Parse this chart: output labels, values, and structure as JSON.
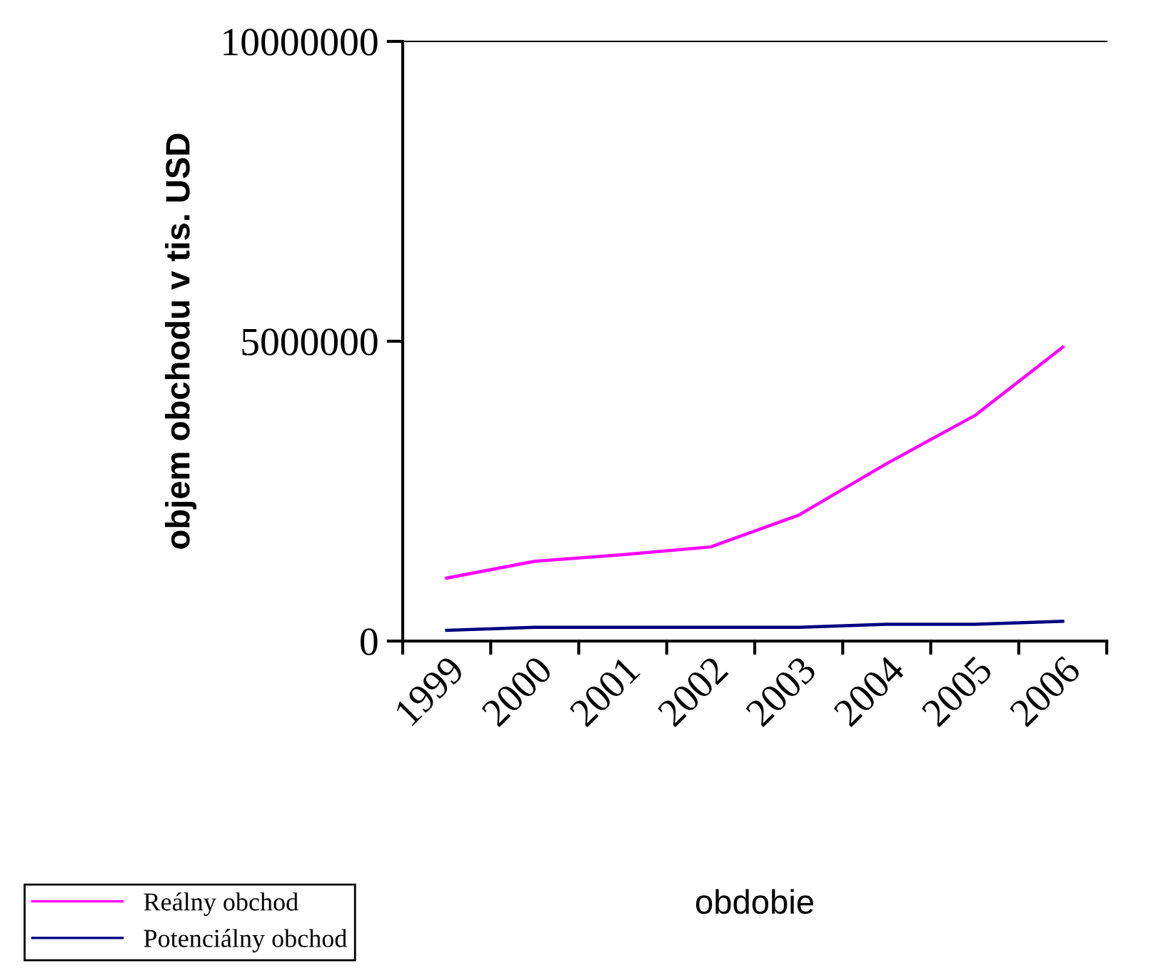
{
  "chart_data": {
    "type": "line",
    "xlabel": "obdobie",
    "ylabel": "objem obchodu v tis. USD",
    "categories": [
      "1999",
      "2000",
      "2001",
      "2002",
      "2003",
      "2004",
      "2005",
      "2006"
    ],
    "series": [
      {
        "name": "Reálny obchod",
        "color": "#ff00ff",
        "values": [
          1050000,
          1330000,
          1440000,
          1570000,
          2100000,
          2960000,
          3760000,
          4900000
        ]
      },
      {
        "name": "Potenciálny obchod",
        "color": "#000080",
        "values": [
          180000,
          230000,
          230000,
          230000,
          230000,
          280000,
          280000,
          330000
        ]
      }
    ],
    "ylim": [
      0,
      10000000
    ],
    "yticks": [
      0,
      5000000,
      10000000
    ],
    "grid": false,
    "legend": "bottom left",
    "marker": "none",
    "line_style": "solid"
  }
}
